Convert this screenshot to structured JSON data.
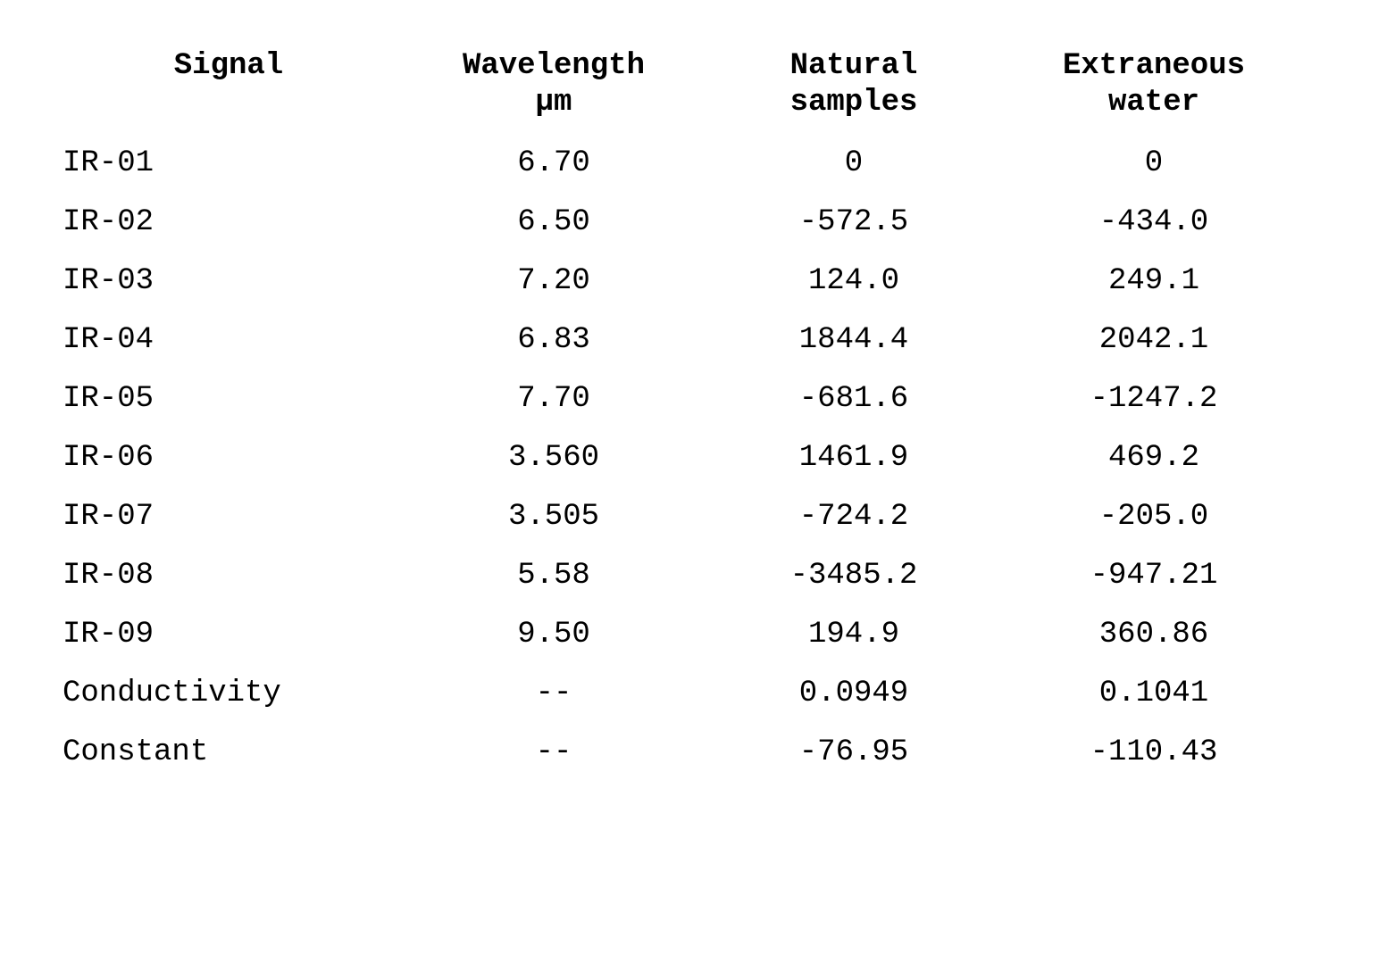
{
  "table": {
    "type": "table",
    "font_family": "Courier New, monospace",
    "header_fontsize_pt": 26,
    "body_fontsize_pt": 26,
    "text_color": "#000000",
    "background_color": "#ffffff",
    "columns": [
      {
        "key": "signal",
        "label_line1": "Signal",
        "label_line2": "",
        "align": "left"
      },
      {
        "key": "wavelength",
        "label_line1": "Wavelength",
        "label_line2": "µm",
        "align": "center"
      },
      {
        "key": "natural",
        "label_line1": "Natural",
        "label_line2": "samples",
        "align": "center"
      },
      {
        "key": "extraneous",
        "label_line1": "Extraneous",
        "label_line2": "water",
        "align": "center"
      }
    ],
    "rows": [
      {
        "signal": "IR-01",
        "wavelength": "6.70",
        "natural": "0",
        "extraneous": "0"
      },
      {
        "signal": "IR-02",
        "wavelength": "6.50",
        "natural": "-572.5",
        "extraneous": "-434.0"
      },
      {
        "signal": "IR-03",
        "wavelength": "7.20",
        "natural": "124.0",
        "extraneous": "249.1"
      },
      {
        "signal": "IR-04",
        "wavelength": "6.83",
        "natural": "1844.4",
        "extraneous": "2042.1"
      },
      {
        "signal": "IR-05",
        "wavelength": "7.70",
        "natural": "-681.6",
        "extraneous": "-1247.2"
      },
      {
        "signal": "IR-06",
        "wavelength": "3.560",
        "natural": "1461.9",
        "extraneous": "469.2"
      },
      {
        "signal": "IR-07",
        "wavelength": "3.505",
        "natural": "-724.2",
        "extraneous": "-205.0"
      },
      {
        "signal": "IR-08",
        "wavelength": "5.58",
        "natural": "-3485.2",
        "extraneous": "-947.21"
      },
      {
        "signal": "IR-09",
        "wavelength": "9.50",
        "natural": "194.9",
        "extraneous": "360.86"
      },
      {
        "signal": "Conductivity",
        "wavelength": "--",
        "natural": "0.0949",
        "extraneous": "0.1041"
      },
      {
        "signal": "Constant",
        "wavelength": "--",
        "natural": "-76.95",
        "extraneous": "-110.43"
      }
    ]
  }
}
